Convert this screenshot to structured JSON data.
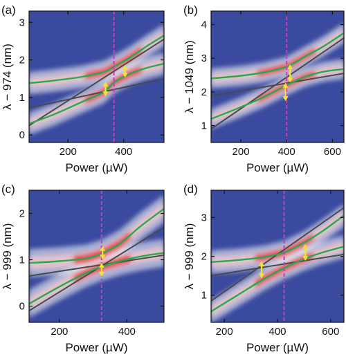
{
  "figure": {
    "colors": {
      "background_low": "#3a4a9e",
      "background_mid": "#ffffff",
      "peak": "#e0202a",
      "line_dark": "#4a4a4a",
      "line_green": "#2aa84a",
      "marker_dashed": "#c040c0",
      "arrow": "#f2e432"
    }
  },
  "chart_data": [
    {
      "panel_label": "(a)",
      "type": "heatmap",
      "xlabel": "Power (µW)",
      "ylabel": "λ − 974 (nm)",
      "xlim": [
        60,
        545
      ],
      "ylim": [
        -0.2,
        3.3
      ],
      "xticks": [
        200,
        400
      ],
      "yticks": [
        0,
        1,
        2,
        3
      ],
      "vline_x": 365,
      "bare_modes": [
        {
          "x": [
            60,
            545
          ],
          "y": [
            0.72,
            1.5
          ]
        },
        {
          "x": [
            60,
            545
          ],
          "y": [
            0.25,
            2.55
          ]
        }
      ],
      "polariton_branches": [
        {
          "x": [
            60,
            150,
            250,
            330,
            365,
            420,
            480,
            545
          ],
          "y": [
            0.3,
            0.55,
            0.88,
            1.15,
            1.4,
            1.62,
            1.78,
            1.9
          ]
        },
        {
          "x": [
            60,
            150,
            250,
            330,
            365,
            420,
            480,
            545
          ],
          "y": [
            1.38,
            1.45,
            1.55,
            1.68,
            1.82,
            2.05,
            2.35,
            2.65
          ]
        }
      ],
      "arrows": [
        {
          "x": 335,
          "y1": 1.05,
          "y2": 1.4
        },
        {
          "x": 405,
          "y1": 1.55,
          "y2": 1.85
        }
      ]
    },
    {
      "panel_label": "(b)",
      "type": "heatmap",
      "xlabel": "Power (µW)",
      "ylabel": "λ − 1049 (nm)",
      "xlim": [
        70,
        650
      ],
      "ylim": [
        0.5,
        4.4
      ],
      "xticks": [
        200,
        400,
        600
      ],
      "yticks": [
        1,
        2,
        3,
        4
      ],
      "vline_x": 400,
      "bare_modes": [
        {
          "x": [
            70,
            650
          ],
          "y": [
            1.88,
            2.55
          ]
        },
        {
          "x": [
            70,
            650
          ],
          "y": [
            0.9,
            3.6
          ]
        }
      ],
      "polariton_branches": [
        {
          "x": [
            70,
            200,
            300,
            400,
            480,
            560,
            650
          ],
          "y": [
            1.2,
            1.55,
            1.85,
            2.2,
            2.45,
            2.6,
            2.68
          ]
        },
        {
          "x": [
            70,
            200,
            300,
            400,
            480,
            560,
            650
          ],
          "y": [
            2.4,
            2.48,
            2.58,
            2.75,
            3.05,
            3.35,
            3.75
          ]
        }
      ],
      "arrows": [
        {
          "x": 395,
          "y1": 1.75,
          "y2": 2.25
        },
        {
          "x": 415,
          "y1": 2.3,
          "y2": 2.8
        }
      ]
    },
    {
      "panel_label": "(c)",
      "type": "heatmap",
      "xlabel": "Power (µW)",
      "ylabel": "λ − 999 (nm)",
      "xlim": [
        110,
        510
      ],
      "ylim": [
        -0.35,
        2.5
      ],
      "xticks": [
        200,
        400
      ],
      "yticks": [
        0,
        1,
        2
      ],
      "vline_x": 325,
      "bare_modes": [
        {
          "x": [
            110,
            510
          ],
          "y": [
            0.65,
            1.1
          ]
        },
        {
          "x": [
            110,
            510
          ],
          "y": [
            -0.1,
            1.7
          ]
        }
      ],
      "polariton_branches": [
        {
          "x": [
            110,
            200,
            280,
            325,
            380,
            440,
            510
          ],
          "y": [
            0.05,
            0.42,
            0.72,
            0.85,
            0.97,
            1.07,
            1.15
          ]
        },
        {
          "x": [
            110,
            200,
            280,
            325,
            380,
            440,
            510
          ],
          "y": [
            0.93,
            0.97,
            1.03,
            1.13,
            1.35,
            1.72,
            2.1
          ]
        }
      ],
      "arrows": [
        {
          "x": 325,
          "y1": 0.65,
          "y2": 0.92
        },
        {
          "x": 328,
          "y1": 1.02,
          "y2": 1.28
        }
      ]
    },
    {
      "panel_label": "(d)",
      "type": "heatmap",
      "xlabel": "Power (µW)",
      "ylabel": "λ − 999 (nm)",
      "xlim": [
        150,
        650
      ],
      "ylim": [
        0.3,
        3.7
      ],
      "xticks": [
        200,
        400,
        600
      ],
      "yticks": [
        1,
        2,
        3
      ],
      "vline_x": 425,
      "bare_modes": [
        {
          "x": [
            150,
            650
          ],
          "y": [
            1.5,
            2.05
          ]
        },
        {
          "x": [
            150,
            650
          ],
          "y": [
            0.85,
            3.25
          ]
        }
      ],
      "polariton_branches": [
        {
          "x": [
            150,
            250,
            350,
            425,
            500,
            570,
            650
          ],
          "y": [
            0.58,
            1.0,
            1.42,
            1.7,
            1.93,
            2.1,
            2.25
          ]
        },
        {
          "x": [
            150,
            250,
            350,
            425,
            500,
            570,
            650
          ],
          "y": [
            1.85,
            1.9,
            1.98,
            2.1,
            2.35,
            2.65,
            3.05
          ]
        }
      ],
      "arrows": [
        {
          "x": 340,
          "y1": 1.45,
          "y2": 1.85
        },
        {
          "x": 505,
          "y1": 1.9,
          "y2": 2.3
        }
      ]
    }
  ]
}
